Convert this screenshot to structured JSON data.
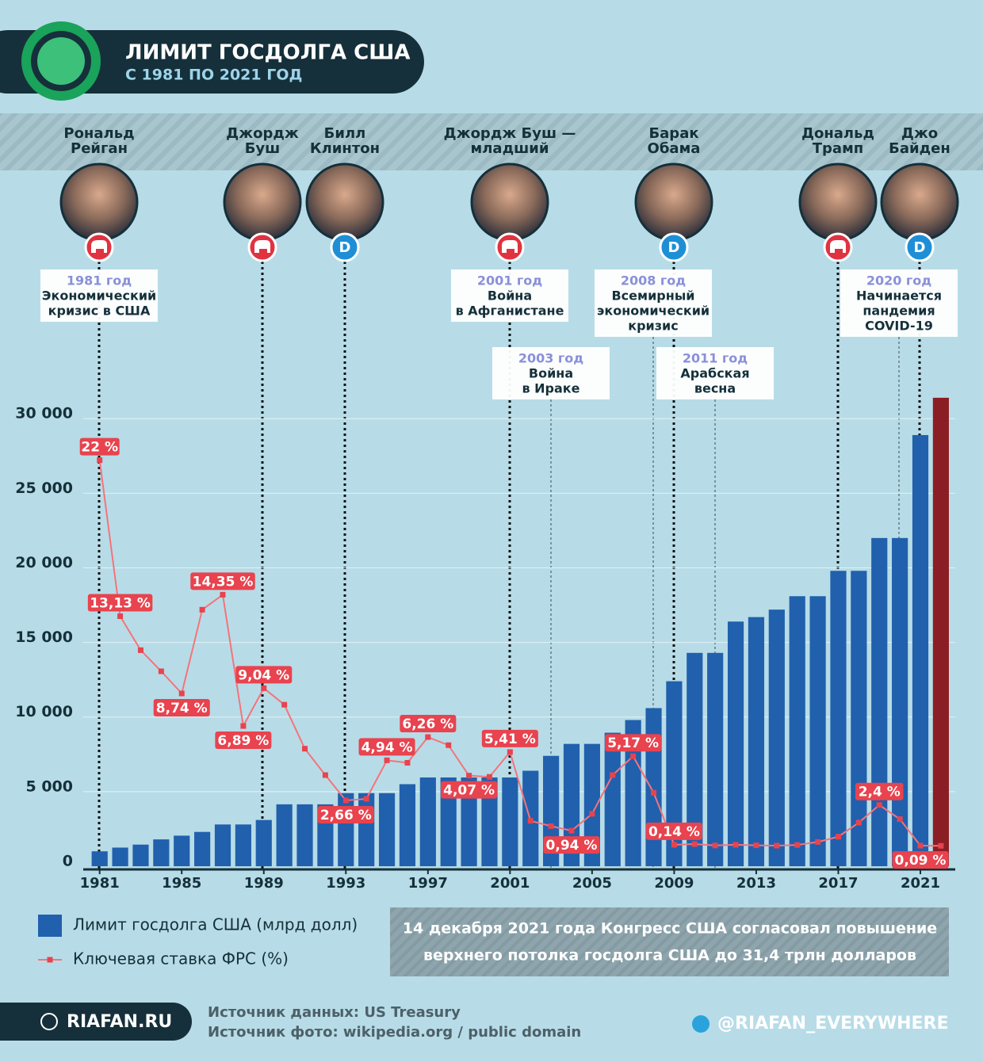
{
  "header": {
    "title": "ЛИМИТ ГОСДОЛГА США",
    "subtitle": "С 1981 ПО 2021 ГОД"
  },
  "presidents": [
    {
      "name": [
        "Рональд",
        "Рейган"
      ]
    },
    {
      "name": [
        "Джордж",
        "Буш"
      ]
    },
    {
      "name": [
        "Билл",
        "Клинтон"
      ],
      "party_mark": "D"
    },
    {
      "name": [
        "Джордж Буш —",
        "младший"
      ]
    },
    {
      "name": [
        "Барак",
        "Обама"
      ],
      "party_mark": "D"
    },
    {
      "name": [
        "Дональд",
        "Трамп"
      ]
    },
    {
      "name": [
        "Джо",
        "Байден"
      ],
      "party_mark": "D"
    }
  ],
  "events": [
    {
      "year": "1981 год",
      "lines": [
        "Экономический",
        "кризис в США"
      ]
    },
    {
      "year": "2001 год",
      "lines": [
        "Война",
        "в Афганистане"
      ]
    },
    {
      "year": "2003 год",
      "lines": [
        "Война",
        "в Ираке"
      ]
    },
    {
      "year": "2008 год",
      "lines": [
        "Всемирный",
        "экономический",
        "кризис"
      ]
    },
    {
      "year": "2011 год",
      "lines": [
        "Арабская",
        "весна"
      ]
    },
    {
      "year": "2020 год",
      "lines": [
        "Начинается",
        "пандемия",
        "COVID-19"
      ]
    }
  ],
  "chart_data": {
    "type": "bar",
    "x": [
      1981,
      1982,
      1983,
      1984,
      1985,
      1986,
      1987,
      1988,
      1989,
      1990,
      1991,
      1992,
      1993,
      1994,
      1995,
      1996,
      1997,
      1998,
      1999,
      2000,
      2001,
      2002,
      2003,
      2004,
      2005,
      2006,
      2007,
      2008,
      2009,
      2010,
      2011,
      2012,
      2013,
      2014,
      2015,
      2016,
      2017,
      2018,
      2019,
      2020,
      2021,
      2022
    ],
    "xlim": [
      1980.2,
      2022.7
    ],
    "xticks": [
      1981,
      1985,
      1989,
      1993,
      1997,
      2001,
      2005,
      2009,
      2013,
      2017,
      2021
    ],
    "ylim": [
      0,
      31500
    ],
    "yticks": [
      0,
      {
        "value": 5000,
        "label": "5 000"
      },
      {
        "value": 10000,
        "label": "10 000"
      },
      {
        "value": 15000,
        "label": "15 000"
      },
      {
        "value": 20000,
        "label": "20 000"
      },
      {
        "value": 25000,
        "label": "25 000"
      },
      {
        "value": 30000,
        "label": "30 000"
      }
    ],
    "y2lim": [
      -1.08,
      25.63
    ],
    "grid": true,
    "series": [
      {
        "name": "Лимит госдолга США (млрд долл)",
        "type": "bar",
        "color": "#2160ad",
        "colors": [
          "#2160ad",
          "#2160ad",
          "#2160ad",
          "#2160ad",
          "#2160ad",
          "#2160ad",
          "#2160ad",
          "#2160ad",
          "#2160ad",
          "#2160ad",
          "#2160ad",
          "#2160ad",
          "#2160ad",
          "#2160ad",
          "#2160ad",
          "#2160ad",
          "#2160ad",
          "#2160ad",
          "#2160ad",
          "#2160ad",
          "#2160ad",
          "#2160ad",
          "#2160ad",
          "#2160ad",
          "#2160ad",
          "#2160ad",
          "#2160ad",
          "#2160ad",
          "#2160ad",
          "#2160ad",
          "#2160ad",
          "#2160ad",
          "#2160ad",
          "#2160ad",
          "#2160ad",
          "#2160ad",
          "#2160ad",
          "#2160ad",
          "#2160ad",
          "#2160ad",
          "#2160ad",
          "#8b1e24"
        ],
        "values": [
          1000,
          1250,
          1450,
          1800,
          2050,
          2300,
          2800,
          2800,
          3100,
          4150,
          4150,
          4150,
          4900,
          4900,
          4900,
          5500,
          5950,
          5950,
          5950,
          5950,
          5950,
          6400,
          7400,
          8200,
          8200,
          8950,
          9800,
          10600,
          12400,
          14300,
          14300,
          16400,
          16700,
          17200,
          18100,
          18100,
          19800,
          19800,
          22000,
          22000,
          28900,
          31400
        ]
      },
      {
        "name": "Ключевая ставка ФРС (%)",
        "type": "line",
        "color": "#f0505a",
        "axis": "y2",
        "values": [
          22,
          13.13,
          11.2,
          10,
          8.74,
          13.5,
          14.35,
          6.89,
          9.04,
          8.1,
          5.6,
          4.1,
          2.66,
          2.75,
          4.94,
          4.8,
          6.26,
          5.8,
          4.07,
          4,
          5.41,
          1.5,
          1.2,
          0.94,
          1.9,
          4.1,
          5.17,
          3.1,
          0.14,
          0.18,
          0.1,
          0.14,
          0.11,
          0.09,
          0.13,
          0.3,
          0.6,
          1.4,
          2.4,
          1.6,
          0.09,
          0.08
        ],
        "value_labels": [
          "22 %",
          "13,13 %",
          null,
          null,
          "8,74 %",
          null,
          "14,35 %",
          "6,89 %",
          "9,04 %",
          null,
          null,
          null,
          "2,66 %",
          null,
          "4,94 %",
          null,
          "6,26 %",
          null,
          "4,07 %",
          null,
          "5,41 %",
          null,
          null,
          "0,94 %",
          null,
          null,
          "5,17 %",
          null,
          "0,14 %",
          null,
          null,
          null,
          null,
          null,
          null,
          null,
          null,
          null,
          "2,4 %",
          null,
          "0,09 %",
          null
        ]
      }
    ]
  },
  "note": [
    "14 декабря 2021 года Конгресс США согласовал повышение",
    "верхнего потолка госдолга США до 31,4 трлн долларов"
  ],
  "footer": {
    "brand": "RIAFAN.RU",
    "sources": [
      "Источник данных: US Treasury",
      "Источник фото: wikipedia.org / public domain"
    ],
    "telegram": "@RIAFAN_EVERYWHERE"
  }
}
